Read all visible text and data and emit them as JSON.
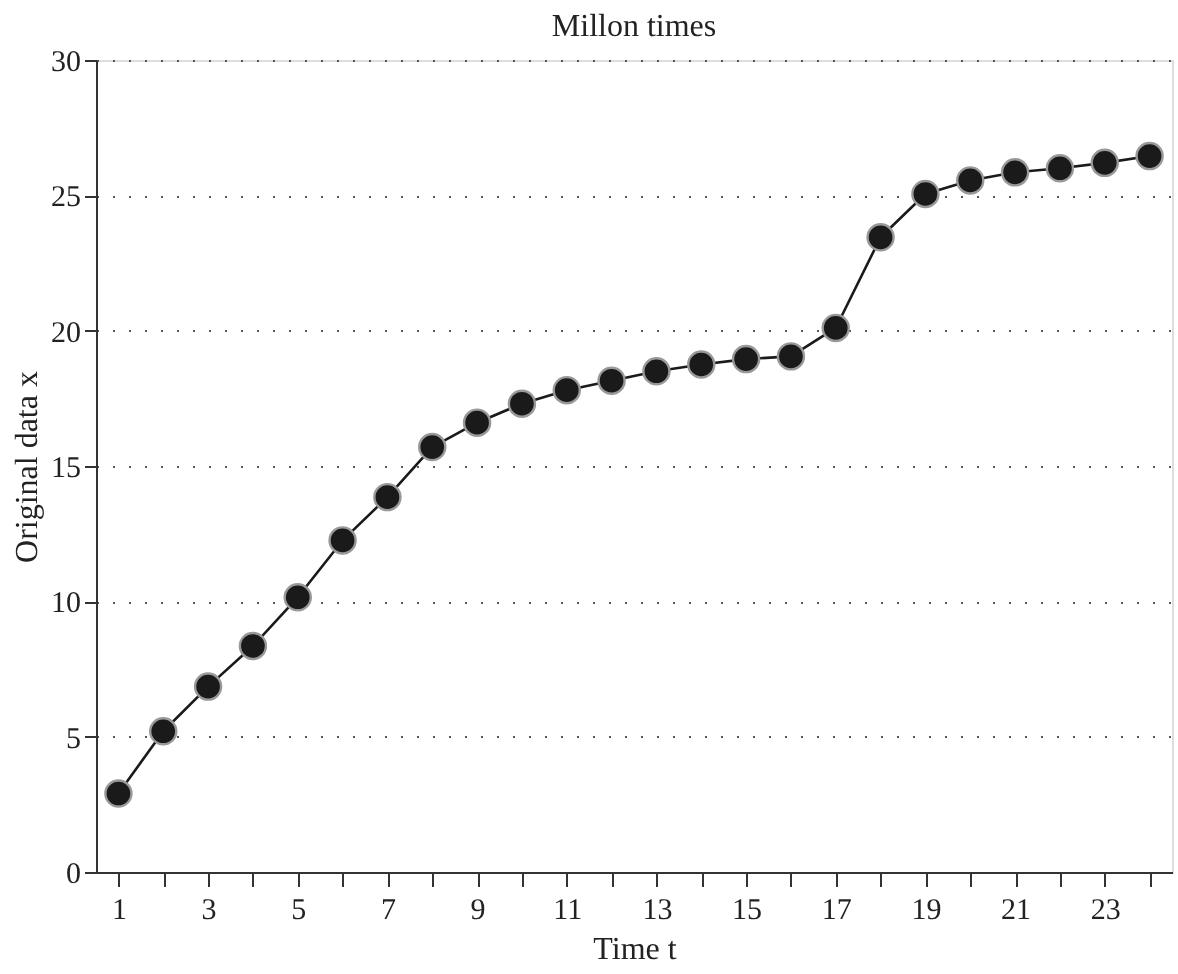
{
  "chart_data": {
    "type": "line",
    "title": "Millon times",
    "xlabel": "Time t",
    "ylabel": "Original data x",
    "x": [
      1,
      2,
      3,
      4,
      5,
      6,
      7,
      8,
      9,
      10,
      11,
      12,
      13,
      14,
      15,
      16,
      17,
      18,
      19,
      20,
      21,
      22,
      23,
      24
    ],
    "series": [
      {
        "color": "#1a1a1a",
        "values": [
          2.9,
          5.2,
          6.85,
          8.35,
          10.15,
          12.25,
          13.85,
          15.7,
          16.6,
          17.3,
          17.8,
          18.15,
          18.5,
          18.75,
          18.95,
          19.05,
          20.1,
          23.45,
          25.05,
          25.55,
          25.85,
          26.0,
          26.2,
          26.45
        ]
      }
    ],
    "xlim": [
      0.5,
      24.5
    ],
    "xticks": [
      1,
      {
        "value": 2,
        "label": null
      },
      3,
      {
        "value": 4,
        "label": null
      },
      5,
      {
        "value": 6,
        "label": null
      },
      7,
      {
        "value": 8,
        "label": null
      },
      9,
      {
        "value": 10,
        "label": null
      },
      11,
      {
        "value": 12,
        "label": null
      },
      13,
      {
        "value": 14,
        "label": null
      },
      15,
      {
        "value": 16,
        "label": null
      },
      17,
      {
        "value": 18,
        "label": null
      },
      19,
      {
        "value": 20,
        "label": null
      },
      21,
      {
        "value": 22,
        "label": null
      },
      23,
      {
        "value": 24,
        "label": null
      }
    ],
    "ylim": [
      0,
      30
    ],
    "yticks": [
      0,
      5,
      10,
      15,
      20,
      25,
      30
    ],
    "grid": "y",
    "marker": "circle",
    "line_style": "solid"
  }
}
